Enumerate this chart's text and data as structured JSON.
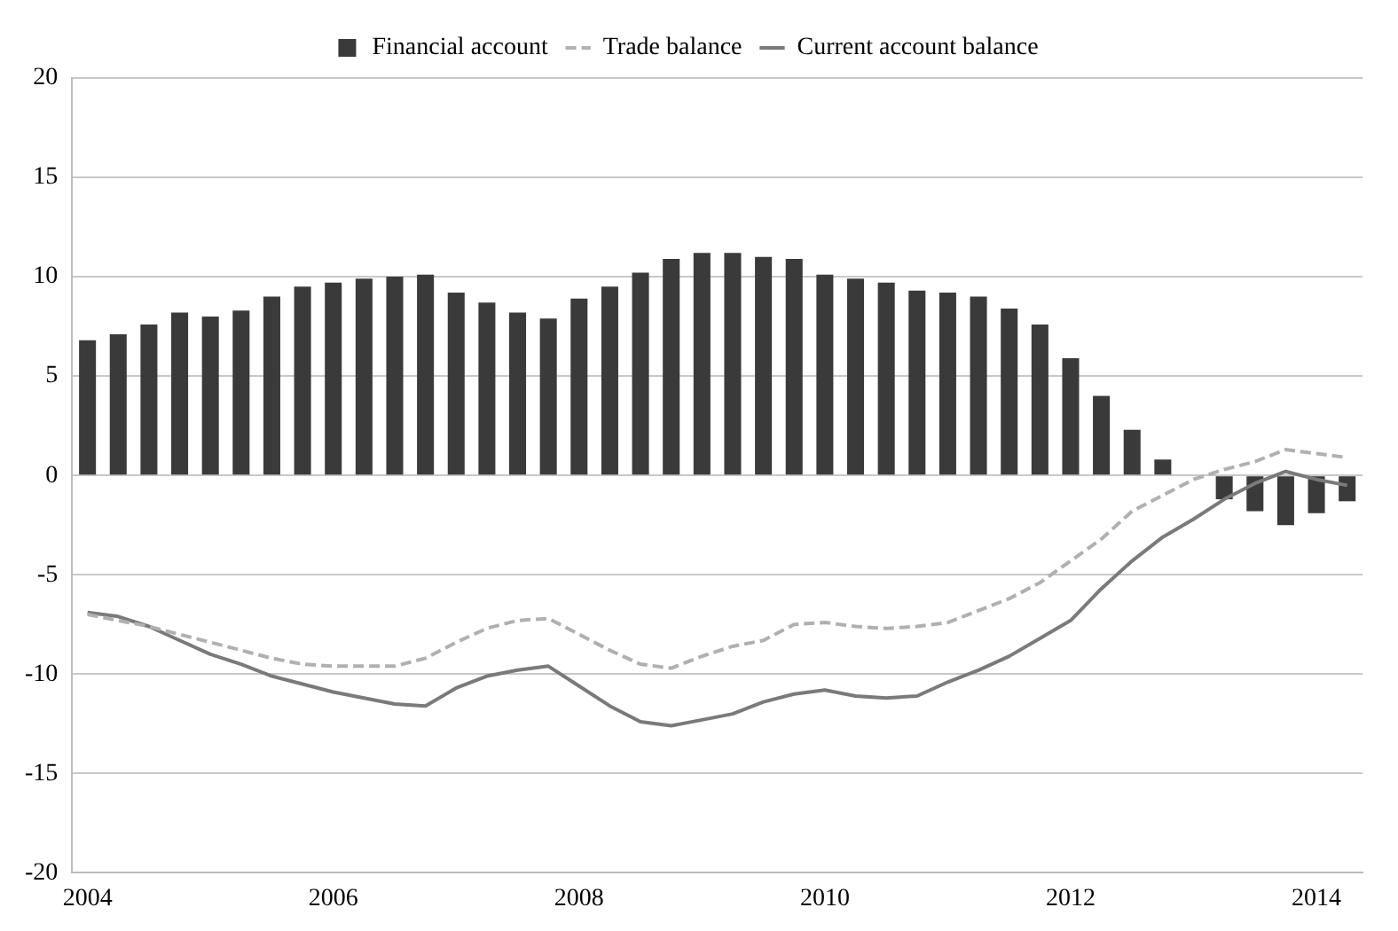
{
  "chart_data": {
    "type": "bar",
    "categories": [
      "2004",
      null,
      null,
      null,
      null,
      null,
      null,
      null,
      "2006",
      null,
      null,
      null,
      null,
      null,
      null,
      null,
      "2008",
      null,
      null,
      null,
      null,
      null,
      null,
      null,
      "2010",
      null,
      null,
      null,
      null,
      null,
      null,
      null,
      "2012",
      null,
      null,
      null,
      null,
      null,
      null,
      null,
      "2014",
      null
    ],
    "series": [
      {
        "name": "Financial account",
        "color": "#3a3a3a",
        "values": [
          6.8,
          7.1,
          7.6,
          8.2,
          8.0,
          8.3,
          9.0,
          9.5,
          9.7,
          9.9,
          10.0,
          10.1,
          9.2,
          8.7,
          8.2,
          7.9,
          8.9,
          9.5,
          10.2,
          10.9,
          11.2,
          11.2,
          11.0,
          10.9,
          10.1,
          9.9,
          9.7,
          9.3,
          9.2,
          9.0,
          8.4,
          7.6,
          5.9,
          4.0,
          2.3,
          0.8,
          0,
          -1.2,
          -1.8,
          -2.5,
          -1.9,
          -1.3
        ]
      },
      {
        "name": "Trade balance",
        "type": "line",
        "line_style": "dashed",
        "color": "#b0b0b0",
        "values": [
          -7.0,
          -7.3,
          -7.6,
          -8.0,
          -8.4,
          -8.8,
          -9.2,
          -9.5,
          -9.6,
          -9.6,
          -9.6,
          -9.2,
          -8.4,
          -7.7,
          -7.3,
          -7.2,
          -8.0,
          -8.8,
          -9.5,
          -9.7,
          -9.1,
          -8.6,
          -8.3,
          -7.5,
          -7.4,
          -7.6,
          -7.7,
          -7.6,
          -7.4,
          -6.8,
          -6.2,
          -5.4,
          -4.3,
          -3.2,
          -1.8,
          -1.0,
          -0.2,
          0.3,
          0.7,
          1.3,
          1.1,
          0.9
        ]
      },
      {
        "name": "Current account balance",
        "type": "line",
        "line_style": "solid",
        "color": "#7a7a7a",
        "values": [
          -6.9,
          -7.1,
          -7.6,
          -8.3,
          -9.0,
          -9.5,
          -10.1,
          -10.5,
          -10.9,
          -11.2,
          -11.5,
          -11.6,
          -10.7,
          -10.1,
          -9.8,
          -9.6,
          -10.6,
          -11.6,
          -12.4,
          -12.6,
          -12.3,
          -12.0,
          -11.4,
          -11.0,
          -10.8,
          -11.1,
          -11.2,
          -11.1,
          -10.4,
          -9.8,
          -9.1,
          -8.2,
          -7.3,
          -5.7,
          -4.3,
          -3.1,
          -2.2,
          -1.2,
          -0.4,
          0.2,
          -0.2,
          -0.5
        ]
      }
    ],
    "ylim": [
      -20,
      20
    ],
    "yticks": [
      -20,
      -15,
      -10,
      -5,
      0,
      5,
      10,
      15,
      20
    ],
    "grid": "y",
    "legend": "top",
    "marker": "none"
  }
}
